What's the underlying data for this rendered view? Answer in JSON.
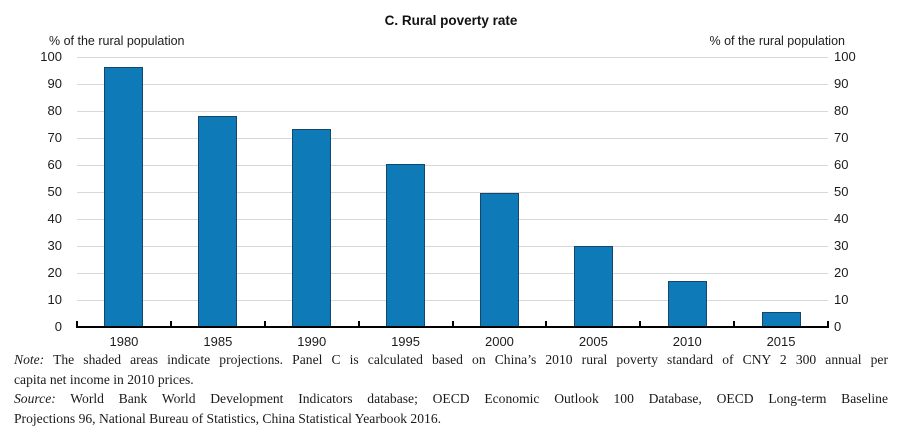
{
  "figure": {
    "title": "C. Rural poverty rate",
    "left_axis_unit": "% of the rural population",
    "right_axis_unit": "% of the rural population"
  },
  "chart_data": {
    "type": "bar",
    "title": "C. Rural poverty rate",
    "categories": [
      "1980",
      "1985",
      "1990",
      "1995",
      "2000",
      "2005",
      "2010",
      "2015"
    ],
    "values": [
      96.2,
      78.3,
      73.5,
      60.5,
      49.8,
      30.2,
      17.2,
      5.7
    ],
    "series_name": "Rural poverty rate",
    "xlabel": "",
    "ylabel_left": "% of the rural population",
    "ylabel_right": "% of the rural population",
    "ylim": [
      0,
      100
    ],
    "yticks": [
      0,
      10,
      20,
      30,
      40,
      50,
      60,
      70,
      80,
      90,
      100
    ],
    "grid": true,
    "legend": false,
    "colors": {
      "bar_fill": "#0e7ab8",
      "bar_border": "#15466b",
      "gridline": "#d8d8d8",
      "axis": "#000000",
      "text": "#1c1c1c"
    }
  },
  "footnotes": {
    "note_label": "Note:",
    "note_line1": "The shaded areas indicate projections. Panel C is calculated based on China’s 2010 rural poverty standard of CNY 2 300 annual per",
    "note_line2": "capita net income in 2010 prices.",
    "source_label": "Source:",
    "source_line1": "World Bank World Development Indicators database; OECD Economic Outlook 100 Database, OECD Long-term Baseline",
    "source_line2": "Projections 96, National Bureau of Statistics, China Statistical Yearbook 2016."
  }
}
